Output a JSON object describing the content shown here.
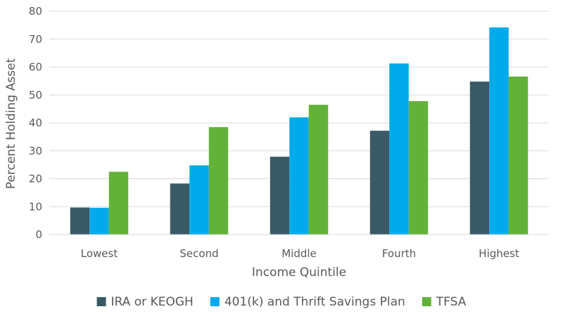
{
  "chart_data": {
    "type": "bar",
    "title": "",
    "xlabel": "Income Quintile",
    "ylabel": "Percent Holding Asset",
    "ylim": [
      0,
      80
    ],
    "yticks": [
      0,
      10,
      20,
      30,
      40,
      50,
      60,
      70,
      80
    ],
    "grid": true,
    "legend_position": "bottom",
    "categories": [
      "Lowest",
      "Second",
      "Middle",
      "Fourth",
      "Highest"
    ],
    "series": [
      {
        "name": "IRA or KEOGH",
        "color": "#3a5a66",
        "values": [
          9.7,
          18.3,
          27.9,
          37.2,
          54.8
        ]
      },
      {
        "name": "401(k) and Thrift Savings Plan",
        "color": "#00aaeb",
        "values": [
          9.6,
          24.8,
          42.0,
          61.3,
          74.2
        ]
      },
      {
        "name": "TFSA",
        "color": "#62b23a",
        "values": [
          22.5,
          38.5,
          46.5,
          47.8,
          56.6
        ]
      }
    ]
  }
}
